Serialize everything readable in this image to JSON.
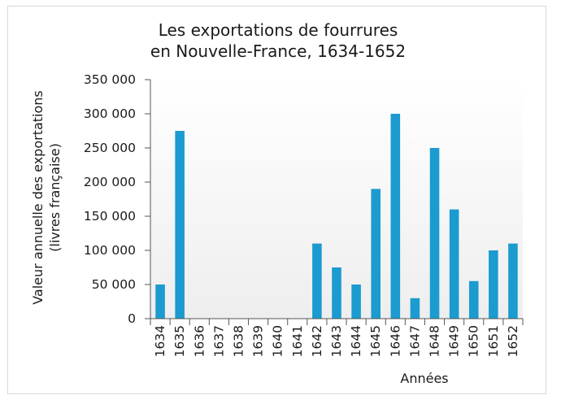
{
  "chart_data": {
    "type": "bar",
    "title": [
      "Les exportations de fourrures",
      "en Nouvelle-France, 1634-1652"
    ],
    "xlabel": "Années",
    "ylabel": [
      "Valeur annuelle des exportations",
      "(livres française)"
    ],
    "categories": [
      "1634",
      "1635",
      "1636",
      "1637",
      "1638",
      "1639",
      "1640",
      "1641",
      "1642",
      "1643",
      "1644",
      "1645",
      "1646",
      "1647",
      "1648",
      "1649",
      "1650",
      "1651",
      "1652"
    ],
    "values": [
      50000,
      275000,
      0,
      0,
      0,
      0,
      0,
      0,
      110000,
      75000,
      50000,
      190000,
      300000,
      30000,
      250000,
      160000,
      55000,
      100000,
      110000
    ],
    "yticks": [
      "0",
      "50 000",
      "100 000",
      "150 000",
      "200 000",
      "250 000",
      "300 000",
      "350 000"
    ],
    "ylim": [
      0,
      350000
    ],
    "bar_color": "#1b9bcf",
    "grid": false
  }
}
